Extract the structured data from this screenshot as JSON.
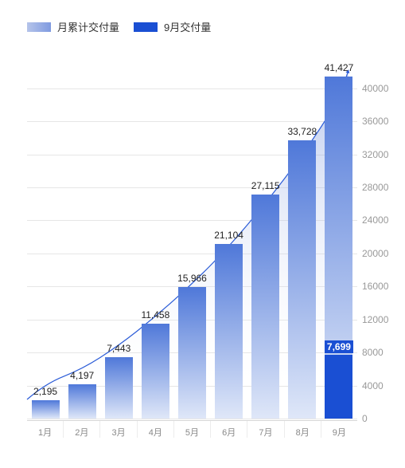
{
  "legend": {
    "cumulative": {
      "label": "月累计交付量",
      "swatch_from": "#b5c4ea",
      "swatch_to": "#7f9ae0"
    },
    "september": {
      "label": "9月交付量",
      "swatch": "#1a4fd3"
    }
  },
  "chart": {
    "type": "bar",
    "categories": [
      "1月",
      "2月",
      "3月",
      "4月",
      "5月",
      "6月",
      "7月",
      "8月",
      "9月"
    ],
    "values": [
      2195,
      4197,
      7443,
      11458,
      15966,
      21104,
      27115,
      33728,
      41427
    ],
    "value_labels": [
      "2,195",
      "4,197",
      "7,443",
      "11,458",
      "15,966",
      "21,104",
      "27,115",
      "33,728",
      "41,427"
    ],
    "highlight": {
      "category_index": 8,
      "value": 7699,
      "label": "7,699",
      "color": "#1a4fd3"
    },
    "ylim": [
      0,
      42000
    ],
    "yticks": [
      0,
      4000,
      8000,
      12000,
      16000,
      20000,
      24000,
      28000,
      32000,
      36000,
      40000
    ],
    "ytick_labels": [
      "0",
      "4000",
      "8000",
      "12000",
      "16000",
      "20000",
      "24000",
      "28000",
      "32000",
      "36000",
      "40000"
    ],
    "grid_color": "#e6e6e6",
    "bar_gradient_top": "#4f78d9",
    "bar_gradient_bottom": "#dfe7f8",
    "curve_color": "#2a5bd7",
    "curve_fill_from": "rgba(101,133,214,0.45)",
    "curve_fill_to": "rgba(255,255,255,0)",
    "axis_font_color": "#999999",
    "label_font_color": "#222222",
    "background_color": "#ffffff",
    "bar_width": 0.76,
    "value_label_fontsize": 12,
    "axis_label_fontsize": 11
  }
}
